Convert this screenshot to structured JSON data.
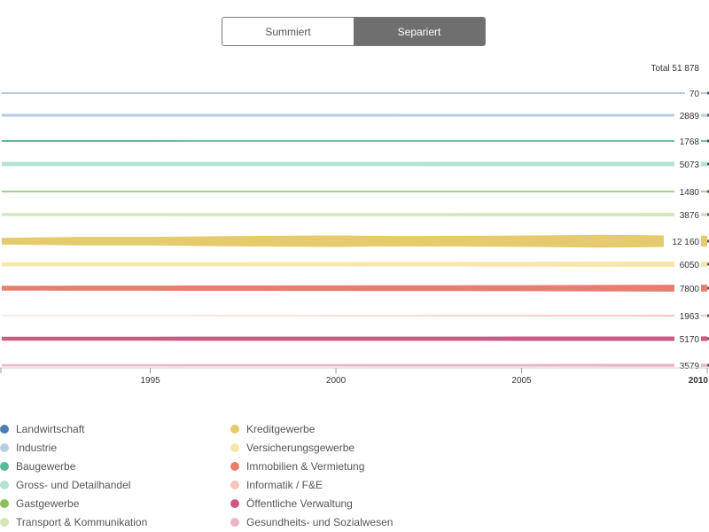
{
  "toggle": {
    "summed_label": "Summiert",
    "separated_label": "Separiert",
    "active": "separated"
  },
  "chart_data": {
    "type": "area",
    "mode": "separated",
    "total_label": "Total 51 878",
    "x": [
      1991,
      1992,
      1993,
      1994,
      1995,
      1996,
      1997,
      1998,
      1999,
      2000,
      2001,
      2002,
      2003,
      2004,
      2005,
      2006,
      2007,
      2008,
      2009,
      2010
    ],
    "xlim": [
      1991,
      2010
    ],
    "xticks": [
      {
        "value": 1995,
        "label": "1995",
        "bold": false
      },
      {
        "value": 2000,
        "label": "2000",
        "bold": false
      },
      {
        "value": 2005,
        "label": "2005",
        "bold": false
      },
      {
        "value": 2010,
        "label": "2010",
        "bold": true
      }
    ],
    "series": [
      {
        "name": "Landwirtschaft",
        "color": "#4e7eb0",
        "end_label": "70",
        "values": [
          70,
          70,
          70,
          70,
          70,
          70,
          70,
          70,
          70,
          70,
          70,
          70,
          70,
          70,
          70,
          70,
          70,
          70,
          70,
          70
        ]
      },
      {
        "name": "Industrie",
        "color": "#b6cde6",
        "end_label": "2889",
        "values": [
          3300,
          3300,
          3300,
          3300,
          3300,
          3250,
          3200,
          3200,
          3150,
          3150,
          3150,
          3100,
          3050,
          3000,
          2950,
          2950,
          2900,
          2900,
          2890,
          2889
        ]
      },
      {
        "name": "Baugewerbe",
        "color": "#5cb896",
        "end_label": "1768",
        "values": [
          2100,
          2050,
          2000,
          1950,
          1900,
          1850,
          1800,
          1800,
          1780,
          1760,
          1760,
          1750,
          1750,
          1750,
          1760,
          1760,
          1770,
          1770,
          1768,
          1768
        ]
      },
      {
        "name": "Gross- und Detailhandel",
        "color": "#b4e2d2",
        "end_label": "5073",
        "values": [
          4800,
          4800,
          4780,
          4760,
          4750,
          4750,
          4760,
          4780,
          4800,
          4820,
          4840,
          4860,
          4880,
          4900,
          4920,
          4950,
          5000,
          5060,
          5080,
          5073
        ]
      },
      {
        "name": "Gastgewerbe",
        "color": "#8cbf58",
        "end_label": "1480",
        "values": [
          1500,
          1500,
          1480,
          1470,
          1460,
          1450,
          1440,
          1430,
          1430,
          1440,
          1450,
          1450,
          1450,
          1450,
          1460,
          1460,
          1470,
          1480,
          1480,
          1480
        ]
      },
      {
        "name": "Transport & Kommunikation",
        "color": "#d3e7b6",
        "end_label": "3876",
        "values": [
          3300,
          3300,
          3300,
          3300,
          3350,
          3400,
          3400,
          3450,
          3450,
          3500,
          3550,
          3550,
          3600,
          3650,
          3700,
          3750,
          3800,
          3850,
          3870,
          3876
        ]
      },
      {
        "name": "Kreditgewerbe",
        "color": "#e5cb6c",
        "end_label": "12 160",
        "values": [
          7500,
          8500,
          9500,
          9500,
          9500,
          10500,
          11500,
          12000,
          12500,
          13000,
          12000,
          11800,
          12000,
          12200,
          12800,
          13500,
          14500,
          14000,
          12800,
          12160
        ]
      },
      {
        "name": "Versicherungsgewerbe",
        "color": "#f8e7a8",
        "end_label": "6050",
        "values": [
          4500,
          4550,
          4500,
          4450,
          4500,
          4550,
          4600,
          4650,
          4700,
          4800,
          4900,
          5000,
          5100,
          5200,
          5300,
          5500,
          5700,
          5900,
          6000,
          6050
        ]
      },
      {
        "name": "Immobilien & Vermietung",
        "color": "#e77e6f",
        "end_label": "7800",
        "values": [
          5500,
          5600,
          5700,
          5750,
          5800,
          5900,
          6000,
          6100,
          6200,
          6300,
          6400,
          6500,
          6550,
          6650,
          6800,
          7000,
          7200,
          7500,
          7700,
          7800
        ]
      },
      {
        "name": "Informatik / F&E",
        "color": "#f4c7bb",
        "end_label": "1963",
        "values": [
          600,
          650,
          700,
          750,
          800,
          850,
          900,
          1000,
          1100,
          1200,
          1300,
          1350,
          1400,
          1450,
          1550,
          1650,
          1750,
          1850,
          1920,
          1963
        ]
      },
      {
        "name": "Öffentliche Verwaltung",
        "color": "#c95c84",
        "end_label": "5170",
        "values": [
          4600,
          4600,
          4600,
          4600,
          4620,
          4640,
          4660,
          4680,
          4700,
          4720,
          4750,
          4780,
          4810,
          4850,
          4880,
          4920,
          4970,
          5030,
          5100,
          5170
        ]
      },
      {
        "name": "Gesundheits- und Sozialwesen",
        "color": "#e8b4c8",
        "end_label": "3579",
        "values": [
          2400,
          2450,
          2500,
          2550,
          2600,
          2650,
          2700,
          2750,
          2800,
          2850,
          2900,
          2950,
          3000,
          3050,
          3100,
          3200,
          3300,
          3400,
          3500,
          3579
        ]
      }
    ]
  }
}
